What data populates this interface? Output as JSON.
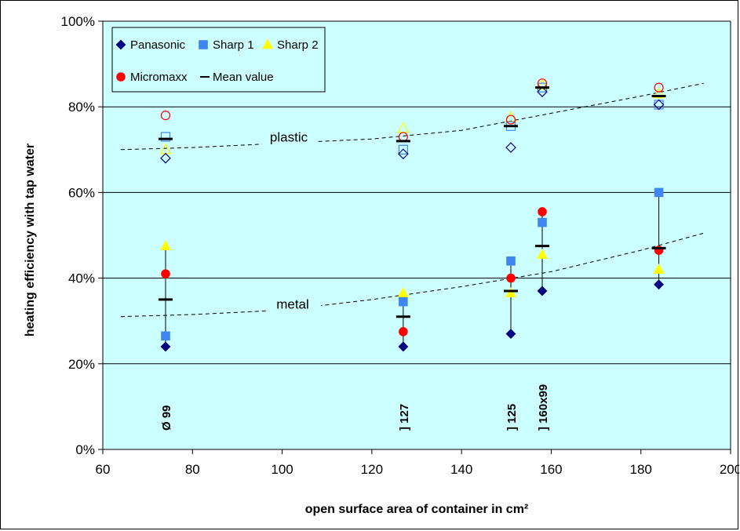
{
  "chart_data": {
    "type": "scatter",
    "xlabel": "open surface area of container in cm²",
    "ylabel": "heating efficiency with tap water",
    "xlim": [
      60,
      200
    ],
    "ylim": [
      0,
      1
    ],
    "x_ticks": [
      "60",
      "80",
      "100",
      "120",
      "140",
      "160",
      "180",
      "200"
    ],
    "y_ticks": [
      "0%",
      "20%",
      "40%",
      "60%",
      "80%",
      "100%"
    ],
    "grid": "horizontal",
    "background": "#ccffff",
    "legend_position": "top-left",
    "x": [
      74,
      127,
      151,
      158,
      184
    ],
    "series": [
      {
        "name": "Panasonic",
        "marker": "diamond",
        "color": "#000080",
        "metal": [
          0.24,
          0.24,
          0.27,
          0.37,
          0.385
        ],
        "plastic": [
          0.68,
          0.69,
          0.705,
          0.835,
          0.805
        ]
      },
      {
        "name": "Sharp 1",
        "marker": "square",
        "color": "#3f86f0",
        "metal": [
          0.265,
          0.345,
          0.44,
          0.53,
          0.6
        ],
        "plastic": [
          0.73,
          0.7,
          0.755,
          0.845,
          0.805
        ]
      },
      {
        "name": "Sharp 2",
        "marker": "triangle",
        "color": "#ffff00",
        "metal": [
          0.475,
          0.365,
          0.365,
          0.455,
          0.42
        ],
        "plastic": [
          0.7,
          0.75,
          0.775,
          0.85,
          0.83
        ]
      },
      {
        "name": "Micromaxx",
        "marker": "circle",
        "color": "#ff0000",
        "metal": [
          0.41,
          0.275,
          0.4,
          0.555,
          0.465
        ],
        "plastic": [
          0.78,
          0.73,
          0.77,
          0.855,
          0.845
        ]
      },
      {
        "name": "Mean value",
        "marker": "dash",
        "color": "#000000",
        "metal": [
          0.35,
          0.31,
          0.37,
          0.475,
          0.47
        ],
        "plastic": [
          0.725,
          0.72,
          0.755,
          0.845,
          0.825
        ]
      }
    ],
    "trendlines": [
      {
        "label": "plastic",
        "style": "dashed",
        "points": [
          [
            64,
            0.7
          ],
          [
            80,
            0.705
          ],
          [
            100,
            0.715
          ],
          [
            120,
            0.725
          ],
          [
            140,
            0.745
          ],
          [
            160,
            0.785
          ],
          [
            180,
            0.825
          ],
          [
            194,
            0.855
          ]
        ]
      },
      {
        "label": "metal",
        "style": "dashed",
        "points": [
          [
            64,
            0.31
          ],
          [
            80,
            0.315
          ],
          [
            100,
            0.325
          ],
          [
            120,
            0.35
          ],
          [
            140,
            0.38
          ],
          [
            160,
            0.415
          ],
          [
            180,
            0.465
          ],
          [
            194,
            0.505
          ]
        ]
      }
    ],
    "annotations": [
      {
        "x": 74,
        "text": "Ø 99"
      },
      {
        "x": 127,
        "text": "] 127"
      },
      {
        "x": 151,
        "text": "] 125"
      },
      {
        "x": 158,
        "text": "] 160x99"
      }
    ]
  }
}
